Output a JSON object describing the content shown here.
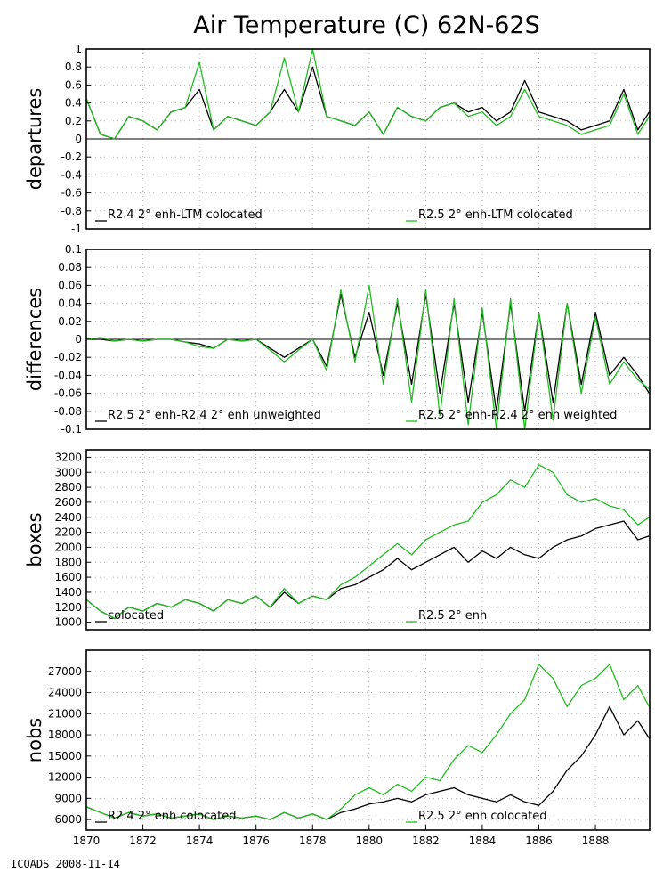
{
  "title": "Air Temperature (C) 62N-62S",
  "footer": "ICOADS 2008-11-14",
  "colors": {
    "black_series": "#000000",
    "green_series": "#22bb22",
    "zero_line": "#000000",
    "grid": "#b4b4b4"
  },
  "x_axis": {
    "ticks": [
      1870,
      1872,
      1874,
      1876,
      1878,
      1880,
      1882,
      1884,
      1886,
      1888
    ],
    "range": [
      1870,
      1889.917
    ]
  },
  "chart_data": [
    {
      "type": "line",
      "ylabel": "departures",
      "ylim": [
        -1,
        1
      ],
      "yticks": [
        -1,
        -0.8,
        -0.6,
        -0.4,
        -0.2,
        0,
        0.2,
        0.4,
        0.6,
        0.8,
        1
      ],
      "ytick_labels": [
        "-1",
        "-0.8",
        "-0.6",
        "-0.4",
        "-0.2",
        "0",
        "0.2",
        "0.4",
        "0.6",
        "0.8",
        "1"
      ],
      "zero_line": true,
      "grid": true,
      "legend_placement": "bottom",
      "series": [
        {
          "name": "R2.4 2° enh-LTM colocated",
          "color": "#000000",
          "x": [
            1870.0,
            1870.5,
            1871.0,
            1871.5,
            1872.0,
            1872.5,
            1873.0,
            1873.5,
            1874.0,
            1874.5,
            1875.0,
            1875.5,
            1876.0,
            1876.5,
            1877.0,
            1877.5,
            1878.0,
            1878.5,
            1879.0,
            1879.5,
            1880.0,
            1880.5,
            1881.0,
            1881.5,
            1882.0,
            1882.5,
            1883.0,
            1883.5,
            1884.0,
            1884.5,
            1885.0,
            1885.5,
            1886.0,
            1886.5,
            1887.0,
            1887.5,
            1888.0,
            1888.5,
            1889.0,
            1889.5,
            1889.9
          ],
          "y": [
            0.45,
            0.05,
            0.0,
            0.25,
            0.2,
            0.1,
            0.3,
            0.35,
            0.55,
            0.1,
            0.25,
            0.2,
            0.15,
            0.3,
            0.55,
            0.3,
            0.8,
            0.25,
            0.2,
            0.15,
            0.3,
            0.05,
            0.35,
            0.25,
            0.2,
            0.35,
            0.4,
            0.3,
            0.35,
            0.2,
            0.3,
            0.65,
            0.3,
            0.25,
            0.2,
            0.1,
            0.15,
            0.2,
            0.55,
            0.1,
            0.3
          ]
        },
        {
          "name": "R2.5 2° enh-LTM colocated",
          "color": "#22bb22",
          "x": [
            1870.0,
            1870.5,
            1871.0,
            1871.5,
            1872.0,
            1872.5,
            1873.0,
            1873.5,
            1874.0,
            1874.5,
            1875.0,
            1875.5,
            1876.0,
            1876.5,
            1877.0,
            1877.5,
            1878.0,
            1878.5,
            1879.0,
            1879.5,
            1880.0,
            1880.5,
            1881.0,
            1881.5,
            1882.0,
            1882.5,
            1883.0,
            1883.5,
            1884.0,
            1884.5,
            1885.0,
            1885.5,
            1886.0,
            1886.5,
            1887.0,
            1887.5,
            1888.0,
            1888.5,
            1889.0,
            1889.5,
            1889.9
          ],
          "y": [
            0.45,
            0.05,
            0.0,
            0.25,
            0.2,
            0.1,
            0.3,
            0.35,
            0.85,
            0.1,
            0.25,
            0.2,
            0.15,
            0.3,
            0.9,
            0.3,
            1.0,
            0.25,
            0.2,
            0.15,
            0.3,
            0.05,
            0.35,
            0.25,
            0.2,
            0.35,
            0.4,
            0.25,
            0.3,
            0.15,
            0.25,
            0.55,
            0.25,
            0.2,
            0.15,
            0.05,
            0.1,
            0.15,
            0.5,
            0.05,
            0.25
          ]
        }
      ]
    },
    {
      "type": "line",
      "ylabel": "differences",
      "ylim": [
        -0.1,
        0.1
      ],
      "yticks": [
        -0.1,
        -0.08,
        -0.06,
        -0.04,
        -0.02,
        0,
        0.02,
        0.04,
        0.06,
        0.08,
        0.1
      ],
      "ytick_labels": [
        "-0.1",
        "-0.08",
        "-0.06",
        "-0.04",
        "-0.02",
        "0",
        "0.02",
        "0.04",
        "0.06",
        "0.08",
        "0.1"
      ],
      "zero_line": true,
      "grid": true,
      "legend_placement": "bottom",
      "series": [
        {
          "name": "R2.5 2° enh-R2.4 2° enh unweighted",
          "color": "#000000",
          "x": [
            1870.0,
            1870.5,
            1871.0,
            1871.5,
            1872.0,
            1872.5,
            1873.0,
            1873.5,
            1874.0,
            1874.5,
            1875.0,
            1875.5,
            1876.0,
            1876.5,
            1877.0,
            1877.5,
            1878.0,
            1878.5,
            1879.0,
            1879.5,
            1880.0,
            1880.5,
            1881.0,
            1881.5,
            1882.0,
            1882.5,
            1883.0,
            1883.5,
            1884.0,
            1884.5,
            1885.0,
            1885.5,
            1886.0,
            1886.5,
            1887.0,
            1887.5,
            1888.0,
            1888.5,
            1889.0,
            1889.5,
            1889.9
          ],
          "y": [
            0.0,
            0.0,
            -0.002,
            0.0,
            -0.002,
            0.0,
            0.0,
            -0.003,
            -0.005,
            -0.01,
            0.0,
            -0.002,
            0.0,
            -0.01,
            -0.02,
            -0.01,
            0.0,
            -0.03,
            0.05,
            -0.02,
            0.03,
            -0.04,
            0.04,
            -0.05,
            0.05,
            -0.06,
            0.04,
            -0.07,
            0.03,
            -0.08,
            0.04,
            -0.08,
            0.03,
            -0.07,
            0.04,
            -0.05,
            0.03,
            -0.04,
            -0.02,
            -0.04,
            -0.06
          ]
        },
        {
          "name": "R2.5 2° enh-R2.4 2° enh weighted",
          "color": "#22bb22",
          "x": [
            1870.0,
            1870.5,
            1871.0,
            1871.5,
            1872.0,
            1872.5,
            1873.0,
            1873.5,
            1874.0,
            1874.5,
            1875.0,
            1875.5,
            1876.0,
            1876.5,
            1877.0,
            1877.5,
            1878.0,
            1878.5,
            1879.0,
            1879.5,
            1880.0,
            1880.5,
            1881.0,
            1881.5,
            1882.0,
            1882.5,
            1883.0,
            1883.5,
            1884.0,
            1884.5,
            1885.0,
            1885.5,
            1886.0,
            1886.5,
            1887.0,
            1887.5,
            1888.0,
            1888.5,
            1889.0,
            1889.5,
            1889.9
          ],
          "y": [
            0.0,
            0.002,
            -0.002,
            0.0,
            -0.002,
            0.0,
            0.0,
            -0.003,
            -0.008,
            -0.01,
            0.0,
            -0.002,
            0.0,
            -0.012,
            -0.025,
            -0.012,
            0.0,
            -0.035,
            0.055,
            -0.025,
            0.06,
            -0.05,
            0.045,
            -0.07,
            0.055,
            -0.085,
            0.045,
            -0.095,
            0.035,
            -0.1,
            0.045,
            -0.1,
            0.03,
            -0.09,
            0.04,
            -0.06,
            0.025,
            -0.05,
            -0.025,
            -0.045,
            -0.055
          ]
        }
      ]
    },
    {
      "type": "line",
      "ylabel": "boxes",
      "ylim": [
        900,
        3300
      ],
      "yticks": [
        1000,
        1200,
        1400,
        1600,
        1800,
        2000,
        2200,
        2400,
        2600,
        2800,
        3000,
        3200
      ],
      "ytick_labels": [
        "1000",
        "1200",
        "1400",
        "1600",
        "1800",
        "2000",
        "2200",
        "2400",
        "2600",
        "2800",
        "3000",
        "3200"
      ],
      "zero_line": false,
      "grid": true,
      "legend_placement": "bottom",
      "series": [
        {
          "name": "colocated",
          "color": "#000000",
          "x": [
            1870.0,
            1870.5,
            1871.0,
            1871.5,
            1872.0,
            1872.5,
            1873.0,
            1873.5,
            1874.0,
            1874.5,
            1875.0,
            1875.5,
            1876.0,
            1876.5,
            1877.0,
            1877.5,
            1878.0,
            1878.5,
            1879.0,
            1879.5,
            1880.0,
            1880.5,
            1881.0,
            1881.5,
            1882.0,
            1882.5,
            1883.0,
            1883.5,
            1884.0,
            1884.5,
            1885.0,
            1885.5,
            1886.0,
            1886.5,
            1887.0,
            1887.5,
            1888.0,
            1888.5,
            1889.0,
            1889.5,
            1889.9
          ],
          "y": [
            1300,
            1150,
            1050,
            1200,
            1150,
            1250,
            1200,
            1300,
            1250,
            1150,
            1300,
            1250,
            1350,
            1200,
            1400,
            1250,
            1350,
            1300,
            1450,
            1500,
            1600,
            1700,
            1850,
            1700,
            1800,
            1900,
            2000,
            1800,
            1950,
            1850,
            2000,
            1900,
            1850,
            2000,
            2100,
            2150,
            2250,
            2300,
            2350,
            2100,
            2150
          ]
        },
        {
          "name": "R2.5 2° enh",
          "color": "#22bb22",
          "x": [
            1870.0,
            1870.5,
            1871.0,
            1871.5,
            1872.0,
            1872.5,
            1873.0,
            1873.5,
            1874.0,
            1874.5,
            1875.0,
            1875.5,
            1876.0,
            1876.5,
            1877.0,
            1877.5,
            1878.0,
            1878.5,
            1879.0,
            1879.5,
            1880.0,
            1880.5,
            1881.0,
            1881.5,
            1882.0,
            1882.5,
            1883.0,
            1883.5,
            1884.0,
            1884.5,
            1885.0,
            1885.5,
            1886.0,
            1886.5,
            1887.0,
            1887.5,
            1888.0,
            1888.5,
            1889.0,
            1889.5,
            1889.9
          ],
          "y": [
            1300,
            1150,
            1050,
            1200,
            1150,
            1250,
            1200,
            1300,
            1250,
            1150,
            1300,
            1250,
            1350,
            1200,
            1450,
            1250,
            1350,
            1300,
            1500,
            1600,
            1750,
            1900,
            2050,
            1900,
            2100,
            2200,
            2300,
            2350,
            2600,
            2700,
            2900,
            2800,
            3100,
            3000,
            2700,
            2600,
            2650,
            2550,
            2500,
            2300,
            2400
          ]
        }
      ]
    },
    {
      "type": "line",
      "ylabel": "nobs",
      "ylim": [
        4500,
        30000
      ],
      "yticks": [
        6000,
        9000,
        12000,
        15000,
        18000,
        21000,
        24000,
        27000
      ],
      "ytick_labels": [
        "6000",
        "9000",
        "12000",
        "15000",
        "18000",
        "21000",
        "24000",
        "27000"
      ],
      "zero_line": false,
      "grid": true,
      "legend_placement": "bottom",
      "series": [
        {
          "name": "R2.4 2° enh colocated",
          "color": "#000000",
          "x": [
            1870.0,
            1870.5,
            1871.0,
            1871.5,
            1872.0,
            1872.5,
            1873.0,
            1873.5,
            1874.0,
            1874.5,
            1875.0,
            1875.5,
            1876.0,
            1876.5,
            1877.0,
            1877.5,
            1878.0,
            1878.5,
            1879.0,
            1879.5,
            1880.0,
            1880.5,
            1881.0,
            1881.5,
            1882.0,
            1882.5,
            1883.0,
            1883.5,
            1884.0,
            1884.5,
            1885.0,
            1885.5,
            1886.0,
            1886.5,
            1887.0,
            1887.5,
            1888.0,
            1888.5,
            1889.0,
            1889.5,
            1889.9
          ],
          "y": [
            7800,
            7000,
            6200,
            7000,
            6500,
            6800,
            6200,
            6500,
            6800,
            6000,
            6500,
            6200,
            6500,
            6000,
            7000,
            6200,
            6800,
            6000,
            7000,
            7500,
            8200,
            8500,
            9000,
            8500,
            9500,
            10000,
            10500,
            9500,
            9000,
            8500,
            9500,
            8500,
            8000,
            10000,
            13000,
            15000,
            18000,
            22000,
            18000,
            20000,
            17500
          ]
        },
        {
          "name": "R2.5 2° enh colocated",
          "color": "#22bb22",
          "x": [
            1870.0,
            1870.5,
            1871.0,
            1871.5,
            1872.0,
            1872.5,
            1873.0,
            1873.5,
            1874.0,
            1874.5,
            1875.0,
            1875.5,
            1876.0,
            1876.5,
            1877.0,
            1877.5,
            1878.0,
            1878.5,
            1879.0,
            1879.5,
            1880.0,
            1880.5,
            1881.0,
            1881.5,
            1882.0,
            1882.5,
            1883.0,
            1883.5,
            1884.0,
            1884.5,
            1885.0,
            1885.5,
            1886.0,
            1886.5,
            1887.0,
            1887.5,
            1888.0,
            1888.5,
            1889.0,
            1889.5,
            1889.9
          ],
          "y": [
            7800,
            7000,
            6200,
            7000,
            6500,
            6800,
            6200,
            6500,
            6800,
            6000,
            6500,
            6200,
            6500,
            6000,
            7000,
            6200,
            6800,
            6000,
            7500,
            9500,
            10500,
            9500,
            11000,
            10000,
            12000,
            11500,
            14500,
            16500,
            15500,
            18000,
            21000,
            23000,
            28000,
            26000,
            22000,
            25000,
            26000,
            28000,
            23000,
            25000,
            22000
          ]
        }
      ]
    }
  ]
}
